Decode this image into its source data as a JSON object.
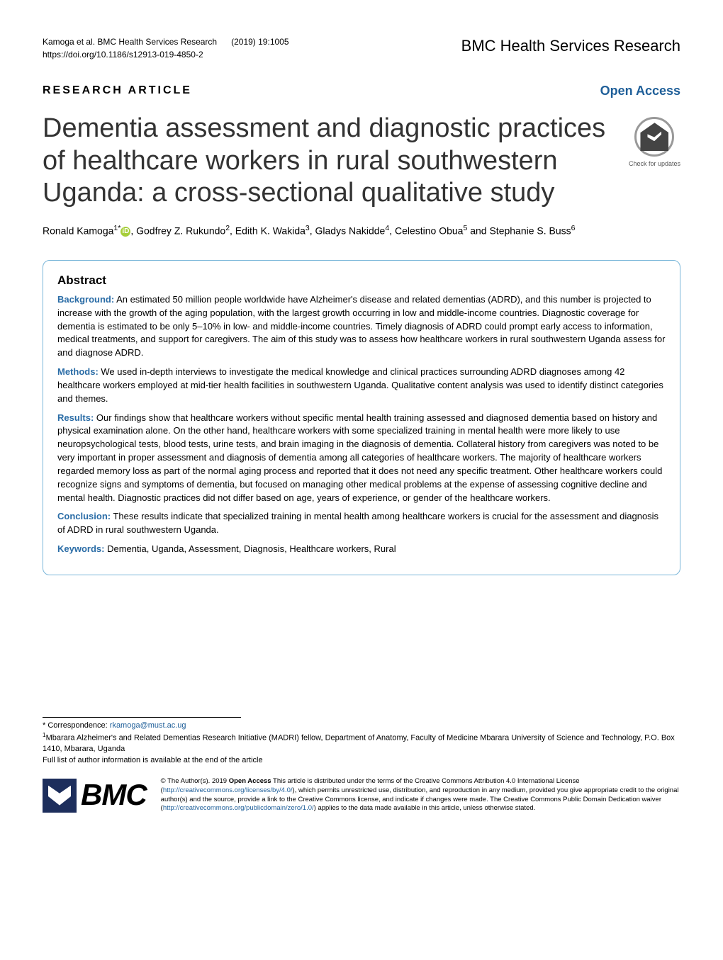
{
  "header": {
    "citation_authors": "Kamoga et al. BMC Health Services Research",
    "citation_issue": "(2019) 19:1005",
    "doi": "https://doi.org/10.1186/s12913-019-4850-2",
    "journal_bmc": "BMC",
    "journal_rest": " Health Services Research"
  },
  "article_type": "RESEARCH ARTICLE",
  "open_access": "Open Access",
  "crossmark_label": "Check for updates",
  "title": "Dementia assessment and diagnostic practices of healthcare workers in rural southwestern Uganda: a cross-sectional qualitative study",
  "authors_html": "Ronald Kamoga<sup>1*</sup><span class=\"orcid\" data-name=\"orcid-icon\" data-interactable=\"false\">iD</span>, Godfrey Z. Rukundo<sup>2</sup>, Edith K. Wakida<sup>3</sup>, Gladys Nakidde<sup>4</sup>, Celestino Obua<sup>5</sup> and Stephanie S. Buss<sup>6</sup>",
  "abstract": {
    "heading": "Abstract",
    "sections": [
      {
        "label": "Background:",
        "text": " An estimated 50 million people worldwide have Alzheimer's disease and related dementias (ADRD), and this number is projected to increase with the growth of the aging population, with the largest growth occurring in low and middle-income countries. Diagnostic coverage for dementia is estimated to be only 5–10% in low- and middle-income countries. Timely diagnosis of ADRD could prompt early access to information, medical treatments, and support for caregivers. The aim of this study was to assess how healthcare workers in rural southwestern Uganda assess for and diagnose ADRD."
      },
      {
        "label": "Methods:",
        "text": " We used in-depth interviews to investigate the medical knowledge and clinical practices surrounding ADRD diagnoses among 42 healthcare workers employed at mid-tier health facilities in southwestern Uganda. Qualitative content analysis was used to identify distinct categories and themes."
      },
      {
        "label": "Results:",
        "text": " Our findings show that healthcare workers without specific mental health training assessed and diagnosed dementia based on history and physical examination alone. On the other hand, healthcare workers with some specialized training in mental health were more likely to use neuropsychological tests, blood tests, urine tests, and brain imaging in the diagnosis of dementia. Collateral history from caregivers was noted to be very important in proper assessment and diagnosis of dementia among all categories of healthcare workers. The majority of healthcare workers regarded memory loss as part of the normal aging process and reported that it does not need any specific treatment. Other healthcare workers could recognize signs and symptoms of dementia, but focused on managing other medical problems at the expense of assessing cognitive decline and mental health. Diagnostic practices did not differ based on age, years of experience, or gender of the healthcare workers."
      },
      {
        "label": "Conclusion:",
        "text": " These results indicate that specialized training in mental health among healthcare workers is crucial for the assessment and diagnosis of ADRD in rural southwestern Uganda."
      }
    ],
    "keywords_label": "Keywords:",
    "keywords_text": " Dementia, Uganda, Assessment, Diagnosis, Healthcare workers, Rural"
  },
  "correspondence": {
    "label": "* Correspondence: ",
    "email": "rkamoga@must.ac.ug",
    "affiliation": "Mbarara Alzheimer's and Related Dementias Research Initiative (MADRI) fellow, Department of Anatomy, Faculty of Medicine Mbarara University of Science and Technology, P.O. Box 1410, Mbarara, Uganda",
    "full_list": "Full list of author information is available at the end of the article"
  },
  "bmc_logo_text": "BMC",
  "license": {
    "prefix": "© The Author(s). 2019 ",
    "open_access_bold": "Open Access",
    "text1": " This article is distributed under the terms of the Creative Commons Attribution 4.0 International License (",
    "link1": "http://creativecommons.org/licenses/by/4.0/",
    "text2": "), which permits unrestricted use, distribution, and reproduction in any medium, provided you give appropriate credit to the original author(s) and the source, provide a link to the Creative Commons license, and indicate if changes were made. The Creative Commons Public Domain Dedication waiver (",
    "link2": "http://creativecommons.org/publicdomain/zero/1.0/",
    "text3": ") applies to the data made available in this article, unless otherwise stated."
  },
  "colors": {
    "accent_blue": "#2a6ca6",
    "border_blue": "#7ab6d9",
    "link_blue": "#1f5f99",
    "bmc_navy": "#1d2e5c",
    "orcid_green": "#a6ce39"
  },
  "typography": {
    "title_fontsize": 38,
    "title_weight": 300,
    "abstract_fontsize": 13,
    "article_type_letterspacing": 3
  }
}
